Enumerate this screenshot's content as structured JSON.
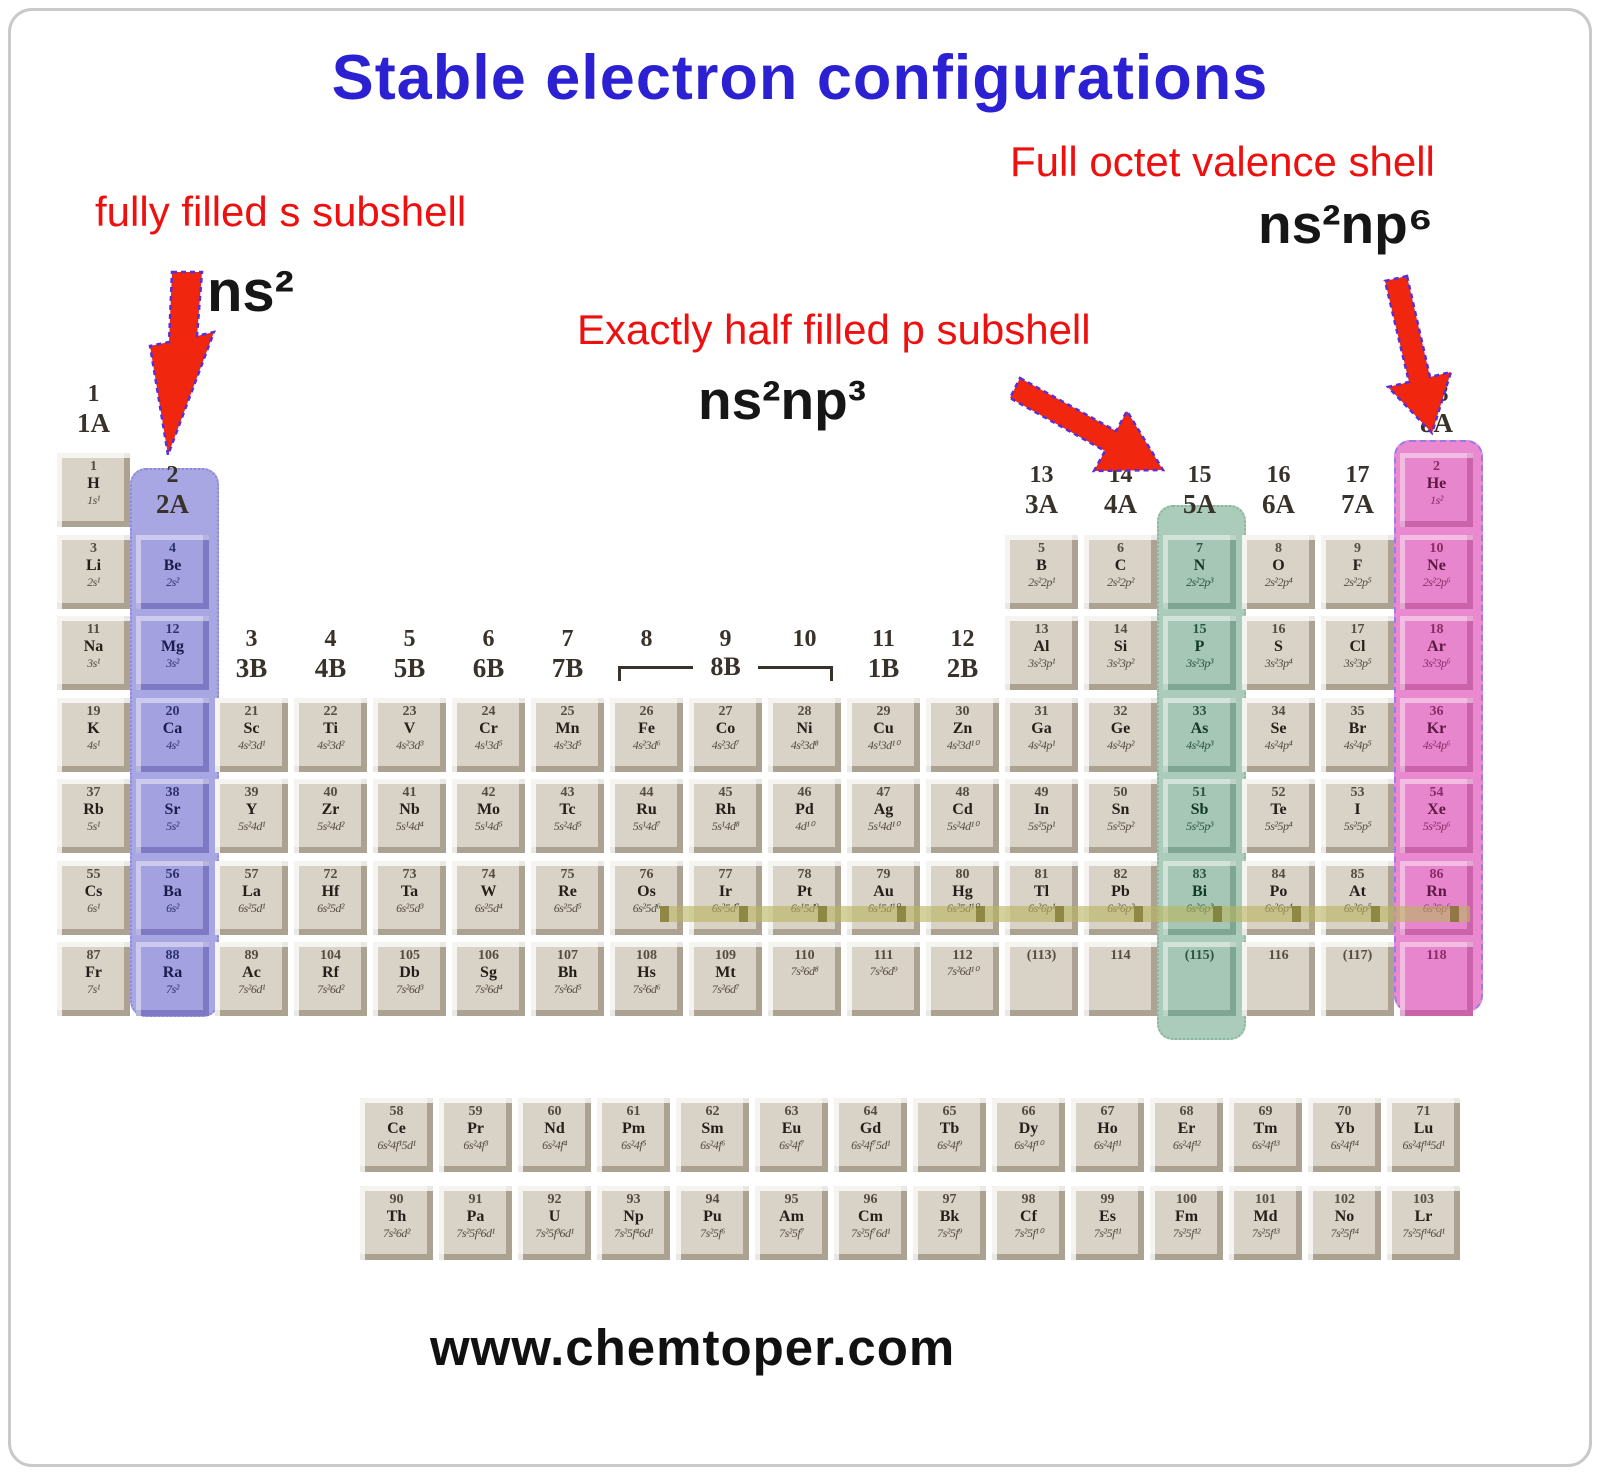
{
  "title": "Stable electron configurations",
  "annotations": {
    "s_label": "fully filled s subshell",
    "s_formula": "ns²",
    "p_label": "Exactly half filled p subshell",
    "p_formula": "ns²np³",
    "octet_label": "Full octet valence shell",
    "octet_formula": "ns²np⁶"
  },
  "footer_url": "www.chemtoper.com",
  "colors": {
    "title_blue": "#2b21d3",
    "label_red": "#ee0f0f",
    "arrow_red": "#f1260f",
    "arrow_outline_purple": "#5b2fd6",
    "highlight_blue": "#a9a7e3",
    "highlight_green": "#abccba",
    "highlight_pink": "#ea89cf",
    "olive_band": "#a8a455",
    "cell_beige": "#d9d2c7"
  },
  "periodic_table": {
    "column_highlights": [
      {
        "color": "blue",
        "col": 2,
        "meaning": "fully filled s subshell ns²"
      },
      {
        "color": "green",
        "col": 15,
        "meaning": "exactly half filled p subshell ns²np³"
      },
      {
        "color": "pink",
        "col": 18,
        "meaning": "full octet valence shell ns²np⁶"
      }
    ],
    "group_headers": [
      {
        "num": "1",
        "label": "1A",
        "col": 1,
        "level": "top"
      },
      {
        "num": "2",
        "label": "2A",
        "col": 2,
        "level": "row1"
      },
      {
        "num": "3",
        "label": "3B",
        "col": 3,
        "level": "row3"
      },
      {
        "num": "4",
        "label": "4B",
        "col": 4,
        "level": "row3"
      },
      {
        "num": "5",
        "label": "5B",
        "col": 5,
        "level": "row3"
      },
      {
        "num": "6",
        "label": "6B",
        "col": 6,
        "level": "row3"
      },
      {
        "num": "7",
        "label": "7B",
        "col": 7,
        "level": "row3"
      },
      {
        "num": "8",
        "label": "",
        "col": 8,
        "level": "row3"
      },
      {
        "num": "9",
        "label": "",
        "col": 9,
        "level": "row3"
      },
      {
        "num": "10",
        "label": "",
        "col": 10,
        "level": "row3"
      },
      {
        "num": "11",
        "label": "1B",
        "col": 11,
        "level": "row3"
      },
      {
        "num": "12",
        "label": "2B",
        "col": 12,
        "level": "row3"
      },
      {
        "num": "13",
        "label": "3A",
        "col": 13,
        "level": "row1"
      },
      {
        "num": "14",
        "label": "4A",
        "col": 14,
        "level": "row1"
      },
      {
        "num": "15",
        "label": "5A",
        "col": 15,
        "level": "row1"
      },
      {
        "num": "16",
        "label": "6A",
        "col": 16,
        "level": "row1"
      },
      {
        "num": "17",
        "label": "7A",
        "col": 17,
        "level": "row1"
      },
      {
        "num": "18",
        "label": "8A",
        "col": 18,
        "level": "top"
      }
    ],
    "bracket": {
      "label": "8B",
      "from_col": 8,
      "to_col": 10
    },
    "rows": [
      {
        "row": 1,
        "elements": [
          {
            "col": 1,
            "n": "1",
            "s": "H",
            "e": "1s¹"
          },
          {
            "col": 18,
            "n": "2",
            "s": "He",
            "e": "1s²",
            "h": "pink"
          }
        ]
      },
      {
        "row": 2,
        "elements": [
          {
            "col": 1,
            "n": "3",
            "s": "Li",
            "e": "2s¹"
          },
          {
            "col": 2,
            "n": "4",
            "s": "Be",
            "e": "2s²",
            "h": "blue"
          },
          {
            "col": 13,
            "n": "5",
            "s": "B",
            "e": "2s²2p¹"
          },
          {
            "col": 14,
            "n": "6",
            "s": "C",
            "e": "2s²2p²"
          },
          {
            "col": 15,
            "n": "7",
            "s": "N",
            "e": "2s²2p³",
            "h": "green"
          },
          {
            "col": 16,
            "n": "8",
            "s": "O",
            "e": "2s²2p⁴"
          },
          {
            "col": 17,
            "n": "9",
            "s": "F",
            "e": "2s²2p⁵"
          },
          {
            "col": 18,
            "n": "10",
            "s": "Ne",
            "e": "2s²2p⁶",
            "h": "pink"
          }
        ]
      },
      {
        "row": 3,
        "elements": [
          {
            "col": 1,
            "n": "11",
            "s": "Na",
            "e": "3s¹"
          },
          {
            "col": 2,
            "n": "12",
            "s": "Mg",
            "e": "3s²",
            "h": "blue"
          },
          {
            "col": 13,
            "n": "13",
            "s": "Al",
            "e": "3s²3p¹"
          },
          {
            "col": 14,
            "n": "14",
            "s": "Si",
            "e": "3s²3p²"
          },
          {
            "col": 15,
            "n": "15",
            "s": "P",
            "e": "3s²3p³",
            "h": "green"
          },
          {
            "col": 16,
            "n": "16",
            "s": "S",
            "e": "3s²3p⁴"
          },
          {
            "col": 17,
            "n": "17",
            "s": "Cl",
            "e": "3s²3p⁵"
          },
          {
            "col": 18,
            "n": "18",
            "s": "Ar",
            "e": "3s²3p⁶",
            "h": "pink"
          }
        ]
      },
      {
        "row": 4,
        "elements": [
          {
            "col": 1,
            "n": "19",
            "s": "K",
            "e": "4s¹"
          },
          {
            "col": 2,
            "n": "20",
            "s": "Ca",
            "e": "4s²",
            "h": "blue"
          },
          {
            "col": 3,
            "n": "21",
            "s": "Sc",
            "e": "4s²3d¹"
          },
          {
            "col": 4,
            "n": "22",
            "s": "Ti",
            "e": "4s²3d²"
          },
          {
            "col": 5,
            "n": "23",
            "s": "V",
            "e": "4s²3d³"
          },
          {
            "col": 6,
            "n": "24",
            "s": "Cr",
            "e": "4s¹3d⁵"
          },
          {
            "col": 7,
            "n": "25",
            "s": "Mn",
            "e": "4s²3d⁵"
          },
          {
            "col": 8,
            "n": "26",
            "s": "Fe",
            "e": "4s²3d⁶"
          },
          {
            "col": 9,
            "n": "27",
            "s": "Co",
            "e": "4s²3d⁷"
          },
          {
            "col": 10,
            "n": "28",
            "s": "Ni",
            "e": "4s²3d⁸"
          },
          {
            "col": 11,
            "n": "29",
            "s": "Cu",
            "e": "4s¹3d¹⁰"
          },
          {
            "col": 12,
            "n": "30",
            "s": "Zn",
            "e": "4s²3d¹⁰"
          },
          {
            "col": 13,
            "n": "31",
            "s": "Ga",
            "e": "4s²4p¹"
          },
          {
            "col": 14,
            "n": "32",
            "s": "Ge",
            "e": "4s²4p²"
          },
          {
            "col": 15,
            "n": "33",
            "s": "As",
            "e": "4s²4p³",
            "h": "green"
          },
          {
            "col": 16,
            "n": "34",
            "s": "Se",
            "e": "4s²4p⁴"
          },
          {
            "col": 17,
            "n": "35",
            "s": "Br",
            "e": "4s²4p⁵"
          },
          {
            "col": 18,
            "n": "36",
            "s": "Kr",
            "e": "4s²4p⁶",
            "h": "pink"
          }
        ]
      },
      {
        "row": 5,
        "elements": [
          {
            "col": 1,
            "n": "37",
            "s": "Rb",
            "e": "5s¹"
          },
          {
            "col": 2,
            "n": "38",
            "s": "Sr",
            "e": "5s²",
            "h": "blue"
          },
          {
            "col": 3,
            "n": "39",
            "s": "Y",
            "e": "5s²4d¹"
          },
          {
            "col": 4,
            "n": "40",
            "s": "Zr",
            "e": "5s²4d²"
          },
          {
            "col": 5,
            "n": "41",
            "s": "Nb",
            "e": "5s¹4d⁴"
          },
          {
            "col": 6,
            "n": "42",
            "s": "Mo",
            "e": "5s¹4d⁵"
          },
          {
            "col": 7,
            "n": "43",
            "s": "Tc",
            "e": "5s²4d⁵"
          },
          {
            "col": 8,
            "n": "44",
            "s": "Ru",
            "e": "5s¹4d⁷"
          },
          {
            "col": 9,
            "n": "45",
            "s": "Rh",
            "e": "5s¹4d⁸"
          },
          {
            "col": 10,
            "n": "46",
            "s": "Pd",
            "e": "4d¹⁰"
          },
          {
            "col": 11,
            "n": "47",
            "s": "Ag",
            "e": "5s¹4d¹⁰"
          },
          {
            "col": 12,
            "n": "48",
            "s": "Cd",
            "e": "5s²4d¹⁰"
          },
          {
            "col": 13,
            "n": "49",
            "s": "In",
            "e": "5s²5p¹"
          },
          {
            "col": 14,
            "n": "50",
            "s": "Sn",
            "e": "5s²5p²"
          },
          {
            "col": 15,
            "n": "51",
            "s": "Sb",
            "e": "5s²5p³",
            "h": "green"
          },
          {
            "col": 16,
            "n": "52",
            "s": "Te",
            "e": "5s²5p⁴"
          },
          {
            "col": 17,
            "n": "53",
            "s": "I",
            "e": "5s²5p⁵"
          },
          {
            "col": 18,
            "n": "54",
            "s": "Xe",
            "e": "5s²5p⁶",
            "h": "pink"
          }
        ]
      },
      {
        "row": 6,
        "elements": [
          {
            "col": 1,
            "n": "55",
            "s": "Cs",
            "e": "6s¹"
          },
          {
            "col": 2,
            "n": "56",
            "s": "Ba",
            "e": "6s²",
            "h": "blue"
          },
          {
            "col": 3,
            "n": "57",
            "s": "La",
            "e": "6s²5d¹"
          },
          {
            "col": 4,
            "n": "72",
            "s": "Hf",
            "e": "6s²5d²"
          },
          {
            "col": 5,
            "n": "73",
            "s": "Ta",
            "e": "6s²5d³"
          },
          {
            "col": 6,
            "n": "74",
            "s": "W",
            "e": "6s²5d⁴"
          },
          {
            "col": 7,
            "n": "75",
            "s": "Re",
            "e": "6s²5d⁵"
          },
          {
            "col": 8,
            "n": "76",
            "s": "Os",
            "e": "6s²5d⁶"
          },
          {
            "col": 9,
            "n": "77",
            "s": "Ir",
            "e": "6s²5d⁷"
          },
          {
            "col": 10,
            "n": "78",
            "s": "Pt",
            "e": "6s¹5d⁹"
          },
          {
            "col": 11,
            "n": "79",
            "s": "Au",
            "e": "6s¹5d¹⁰"
          },
          {
            "col": 12,
            "n": "80",
            "s": "Hg",
            "e": "6s²5d¹⁰"
          },
          {
            "col": 13,
            "n": "81",
            "s": "Tl",
            "e": "6s²6p¹"
          },
          {
            "col": 14,
            "n": "82",
            "s": "Pb",
            "e": "6s²6p²"
          },
          {
            "col": 15,
            "n": "83",
            "s": "Bi",
            "e": "6s²6p³",
            "h": "green"
          },
          {
            "col": 16,
            "n": "84",
            "s": "Po",
            "e": "6s²6p⁴"
          },
          {
            "col": 17,
            "n": "85",
            "s": "At",
            "e": "6s²6p⁵"
          },
          {
            "col": 18,
            "n": "86",
            "s": "Rn",
            "e": "6s²6p⁶",
            "h": "pink"
          }
        ]
      },
      {
        "row": 7,
        "elements": [
          {
            "col": 1,
            "n": "87",
            "s": "Fr",
            "e": "7s¹"
          },
          {
            "col": 2,
            "n": "88",
            "s": "Ra",
            "e": "7s²",
            "h": "blue"
          },
          {
            "col": 3,
            "n": "89",
            "s": "Ac",
            "e": "7s²6d¹"
          },
          {
            "col": 4,
            "n": "104",
            "s": "Rf",
            "e": "7s²6d²"
          },
          {
            "col": 5,
            "n": "105",
            "s": "Db",
            "e": "7s²6d³"
          },
          {
            "col": 6,
            "n": "106",
            "s": "Sg",
            "e": "7s²6d⁴"
          },
          {
            "col": 7,
            "n": "107",
            "s": "Bh",
            "e": "7s²6d⁵"
          },
          {
            "col": 8,
            "n": "108",
            "s": "Hs",
            "e": "7s²6d⁶"
          },
          {
            "col": 9,
            "n": "109",
            "s": "Mt",
            "e": "7s²6d⁷"
          },
          {
            "col": 10,
            "n": "110",
            "s": "",
            "e": "7s²6d⁸"
          },
          {
            "col": 11,
            "n": "111",
            "s": "",
            "e": "7s²6d⁹"
          },
          {
            "col": 12,
            "n": "112",
            "s": "",
            "e": "7s²6d¹⁰"
          },
          {
            "col": 13,
            "n": "(113)",
            "s": "",
            "e": ""
          },
          {
            "col": 14,
            "n": "114",
            "s": "",
            "e": ""
          },
          {
            "col": 15,
            "n": "(115)",
            "s": "",
            "e": "",
            "h": "green"
          },
          {
            "col": 16,
            "n": "116",
            "s": "",
            "e": ""
          },
          {
            "col": 17,
            "n": "(117)",
            "s": "",
            "e": ""
          },
          {
            "col": 18,
            "n": "118",
            "s": "",
            "e": "",
            "h": "pink"
          }
        ]
      }
    ],
    "lanthanides": [
      {
        "n": "58",
        "s": "Ce",
        "e": "6s²4f¹5d¹"
      },
      {
        "n": "59",
        "s": "Pr",
        "e": "6s²4f³"
      },
      {
        "n": "60",
        "s": "Nd",
        "e": "6s²4f⁴"
      },
      {
        "n": "61",
        "s": "Pm",
        "e": "6s²4f⁵"
      },
      {
        "n": "62",
        "s": "Sm",
        "e": "6s²4f⁶"
      },
      {
        "n": "63",
        "s": "Eu",
        "e": "6s²4f⁷"
      },
      {
        "n": "64",
        "s": "Gd",
        "e": "6s²4f⁷5d¹"
      },
      {
        "n": "65",
        "s": "Tb",
        "e": "6s²4f⁹"
      },
      {
        "n": "66",
        "s": "Dy",
        "e": "6s²4f¹⁰"
      },
      {
        "n": "67",
        "s": "Ho",
        "e": "6s²4f¹¹"
      },
      {
        "n": "68",
        "s": "Er",
        "e": "6s²4f¹²"
      },
      {
        "n": "69",
        "s": "Tm",
        "e": "6s²4f¹³"
      },
      {
        "n": "70",
        "s": "Yb",
        "e": "6s²4f¹⁴"
      },
      {
        "n": "71",
        "s": "Lu",
        "e": "6s²4f¹⁴5d¹"
      }
    ],
    "actinides": [
      {
        "n": "90",
        "s": "Th",
        "e": "7s²6d²"
      },
      {
        "n": "91",
        "s": "Pa",
        "e": "7s²5f²6d¹"
      },
      {
        "n": "92",
        "s": "U",
        "e": "7s²5f³6d¹"
      },
      {
        "n": "93",
        "s": "Np",
        "e": "7s²5f⁴6d¹"
      },
      {
        "n": "94",
        "s": "Pu",
        "e": "7s²5f⁶"
      },
      {
        "n": "95",
        "s": "Am",
        "e": "7s²5f⁷"
      },
      {
        "n": "96",
        "s": "Cm",
        "e": "7s²5f⁷6d¹"
      },
      {
        "n": "97",
        "s": "Bk",
        "e": "7s²5f⁹"
      },
      {
        "n": "98",
        "s": "Cf",
        "e": "7s²5f¹⁰"
      },
      {
        "n": "99",
        "s": "Es",
        "e": "7s²5f¹¹"
      },
      {
        "n": "100",
        "s": "Fm",
        "e": "7s²5f¹²"
      },
      {
        "n": "101",
        "s": "Md",
        "e": "7s²5f¹³"
      },
      {
        "n": "102",
        "s": "No",
        "e": "7s²5f¹⁴"
      },
      {
        "n": "103",
        "s": "Lr",
        "e": "7s²5f¹⁴6d¹"
      }
    ]
  }
}
